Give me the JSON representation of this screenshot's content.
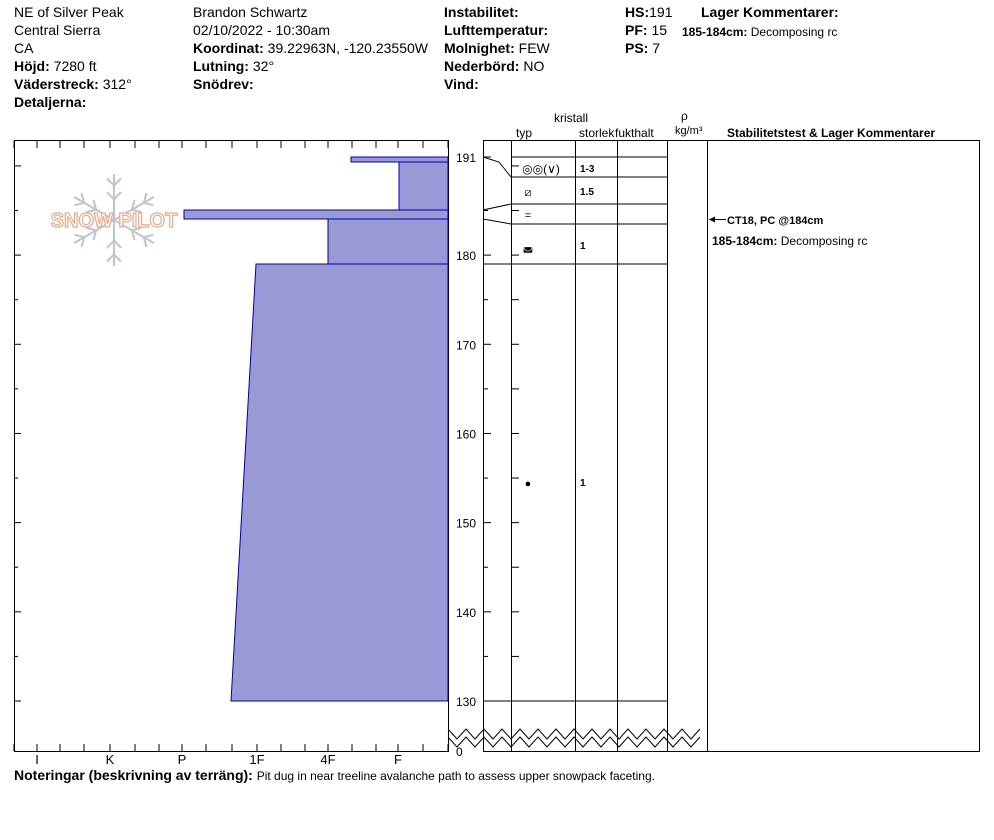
{
  "header": {
    "col1": {
      "location": "NE of Silver Peak",
      "region": "Central Sierra",
      "state": "CA",
      "elevation_label": "Höjd:",
      "elevation_value": "7280 ft",
      "aspect_label": "Väderstreck:",
      "aspect_value": "312°",
      "details_label": "Detaljerna:"
    },
    "col2": {
      "observer": "Brandon Schwartz",
      "datetime": "02/10/2022 - 10:30am",
      "coord_label": "Koordinat:",
      "coord_value": "39.22963N, -120.23550W",
      "slope_label": "Lutning:",
      "slope_value": "32°",
      "drift_label": "Snödrev:"
    },
    "col3": {
      "instability_label": "Instabilitet:",
      "airtemp_label": "Lufttemperatur:",
      "sky_label": "Molnighet:",
      "sky_value": "FEW",
      "precip_label": "Nederbörd:",
      "precip_value": "NO",
      "wind_label": "Vind:"
    },
    "col4": {
      "hs_label": "HS:",
      "hs_value": "191",
      "pf_label": "PF:",
      "pf_value": "15",
      "ps_label": "PS:",
      "ps_value": "7"
    },
    "layer_comments": {
      "title": "Lager Kommentarer:",
      "range": "185-184cm:",
      "text": "Decomposing rc"
    }
  },
  "logo_text": "SNOW PILOT",
  "table_headers": {
    "crystal": "kristall",
    "type": "typ",
    "size": "storlek",
    "moisture": "fukthalt",
    "rho": "ρ",
    "density_unit": "kg/m³",
    "stability": "Stabilitetstest & Lager Kommentarer"
  },
  "hardness_axis": {
    "labels": [
      "I",
      "K",
      "P",
      "1F",
      "4F",
      "F"
    ]
  },
  "depth_axis": {
    "labels": [
      "191",
      "180",
      "170",
      "160",
      "150",
      "140",
      "130",
      "0"
    ]
  },
  "layers": [
    {
      "top": 191,
      "bottom": 189,
      "type_symbol": "◎◎(∨)",
      "size": "1-3"
    },
    {
      "top": 189,
      "bottom": 186,
      "type_symbol": "⧄",
      "size": "1.5"
    },
    {
      "top": 186,
      "bottom": 184,
      "type_symbol": "=",
      "size": ""
    },
    {
      "top": 184,
      "bottom": 179,
      "type_symbol": "◛",
      "size": "1"
    },
    {
      "top": 179,
      "bottom": 130,
      "type_symbol": "●",
      "size": "1"
    }
  ],
  "stability_tests": {
    "test1": "CT18, PC @184cm",
    "range": "185-184cm:",
    "text": "Decomposing rc"
  },
  "notes": {
    "label": "Noteringar (beskrivning av terräng):",
    "text": "Pit dug in near treeline avalanche path to assess upper snowpack faceting."
  },
  "colors": {
    "profile_fill": "#9999d6",
    "profile_stroke": "#0000aa",
    "logo": "#e7a98a",
    "snowflake": "#b9c6cf"
  }
}
